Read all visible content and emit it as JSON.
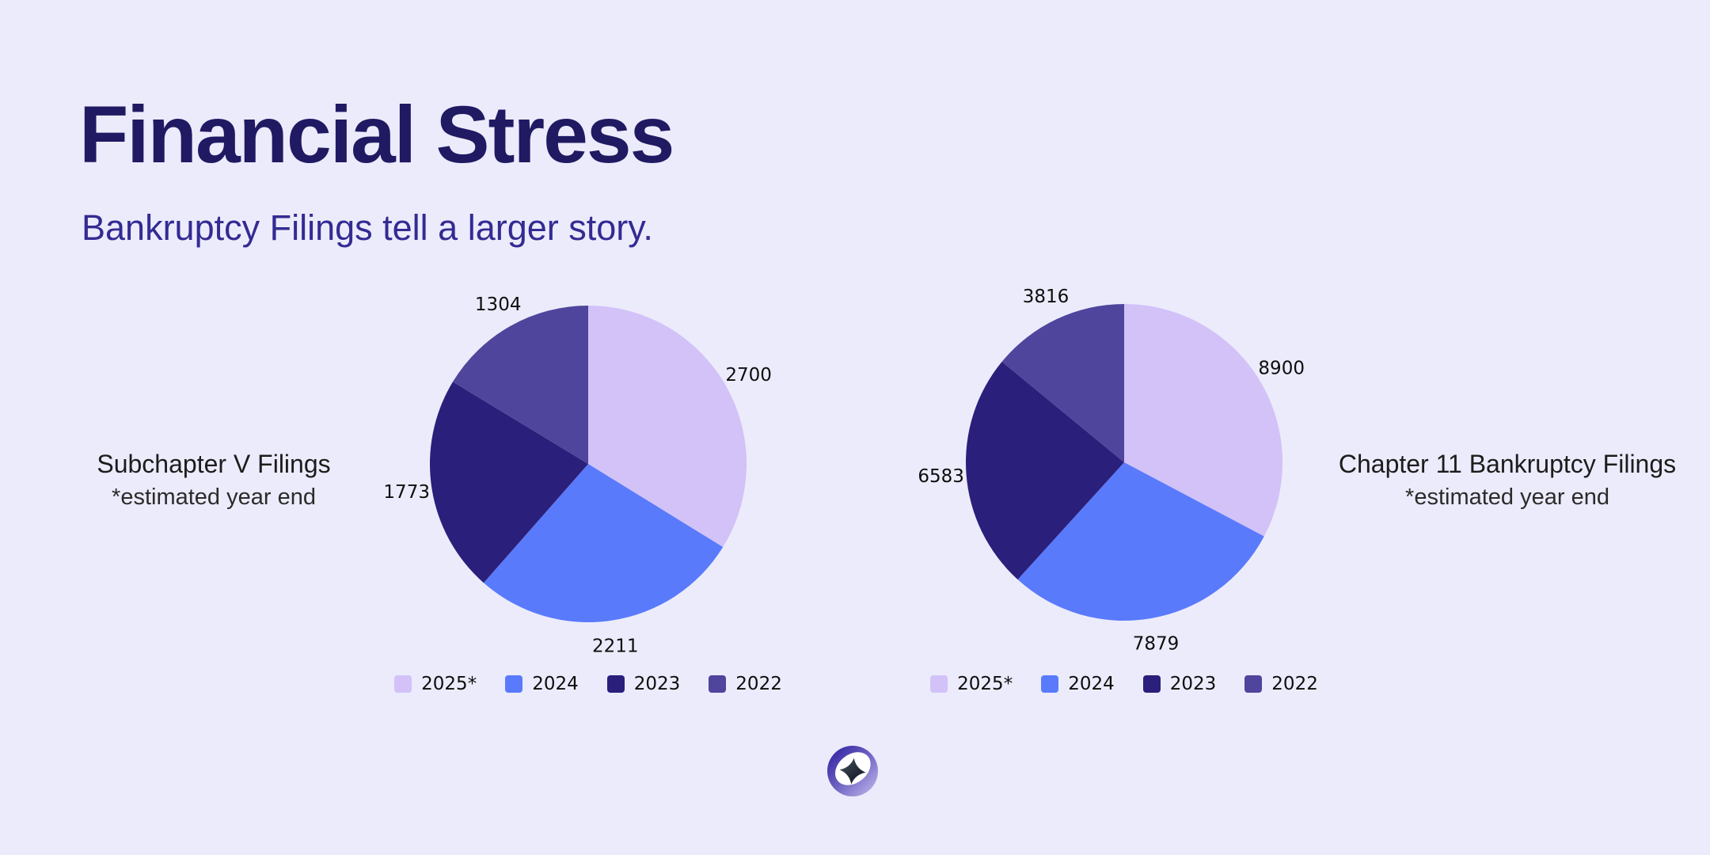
{
  "header": {
    "title": "Financial Stress",
    "subtitle": "Bankruptcy Filings tell a larger story."
  },
  "colors": {
    "background": "#ECEBFB",
    "title_text": "#201A63",
    "subtitle_text": "#332B92",
    "chart_label_text": "#1C1C1C",
    "value_label_text": "#0D0D0D",
    "logo_gradient_start": "#2A1B9E",
    "logo_gradient_end": "#C7BDEF"
  },
  "chart_data": [
    {
      "type": "pie",
      "title": "Subchapter V Filings",
      "subtitle": "*estimated year end",
      "categories": [
        "2025*",
        "2024",
        "2023",
        "2022"
      ],
      "values": [
        2700,
        2211,
        1773,
        1304
      ],
      "colors": [
        "#D2C2F8",
        "#597AFB",
        "#2A1F7A",
        "#4F459C"
      ],
      "start_angle_deg": 0,
      "direction": "clockwise",
      "data_labels": "outside",
      "legend_position": "bottom"
    },
    {
      "type": "pie",
      "title": "Chapter 11 Bankruptcy Filings",
      "subtitle": "*estimated year end",
      "categories": [
        "2025*",
        "2024",
        "2023",
        "2022"
      ],
      "values": [
        8900,
        7879,
        6583,
        3816
      ],
      "colors": [
        "#D2C2F8",
        "#597AFB",
        "#2A1F7A",
        "#4F459C"
      ],
      "start_angle_deg": 0,
      "direction": "clockwise",
      "data_labels": "outside",
      "legend_position": "bottom"
    }
  ],
  "footer": {
    "logo_name": "sparkle-ring-logo"
  }
}
